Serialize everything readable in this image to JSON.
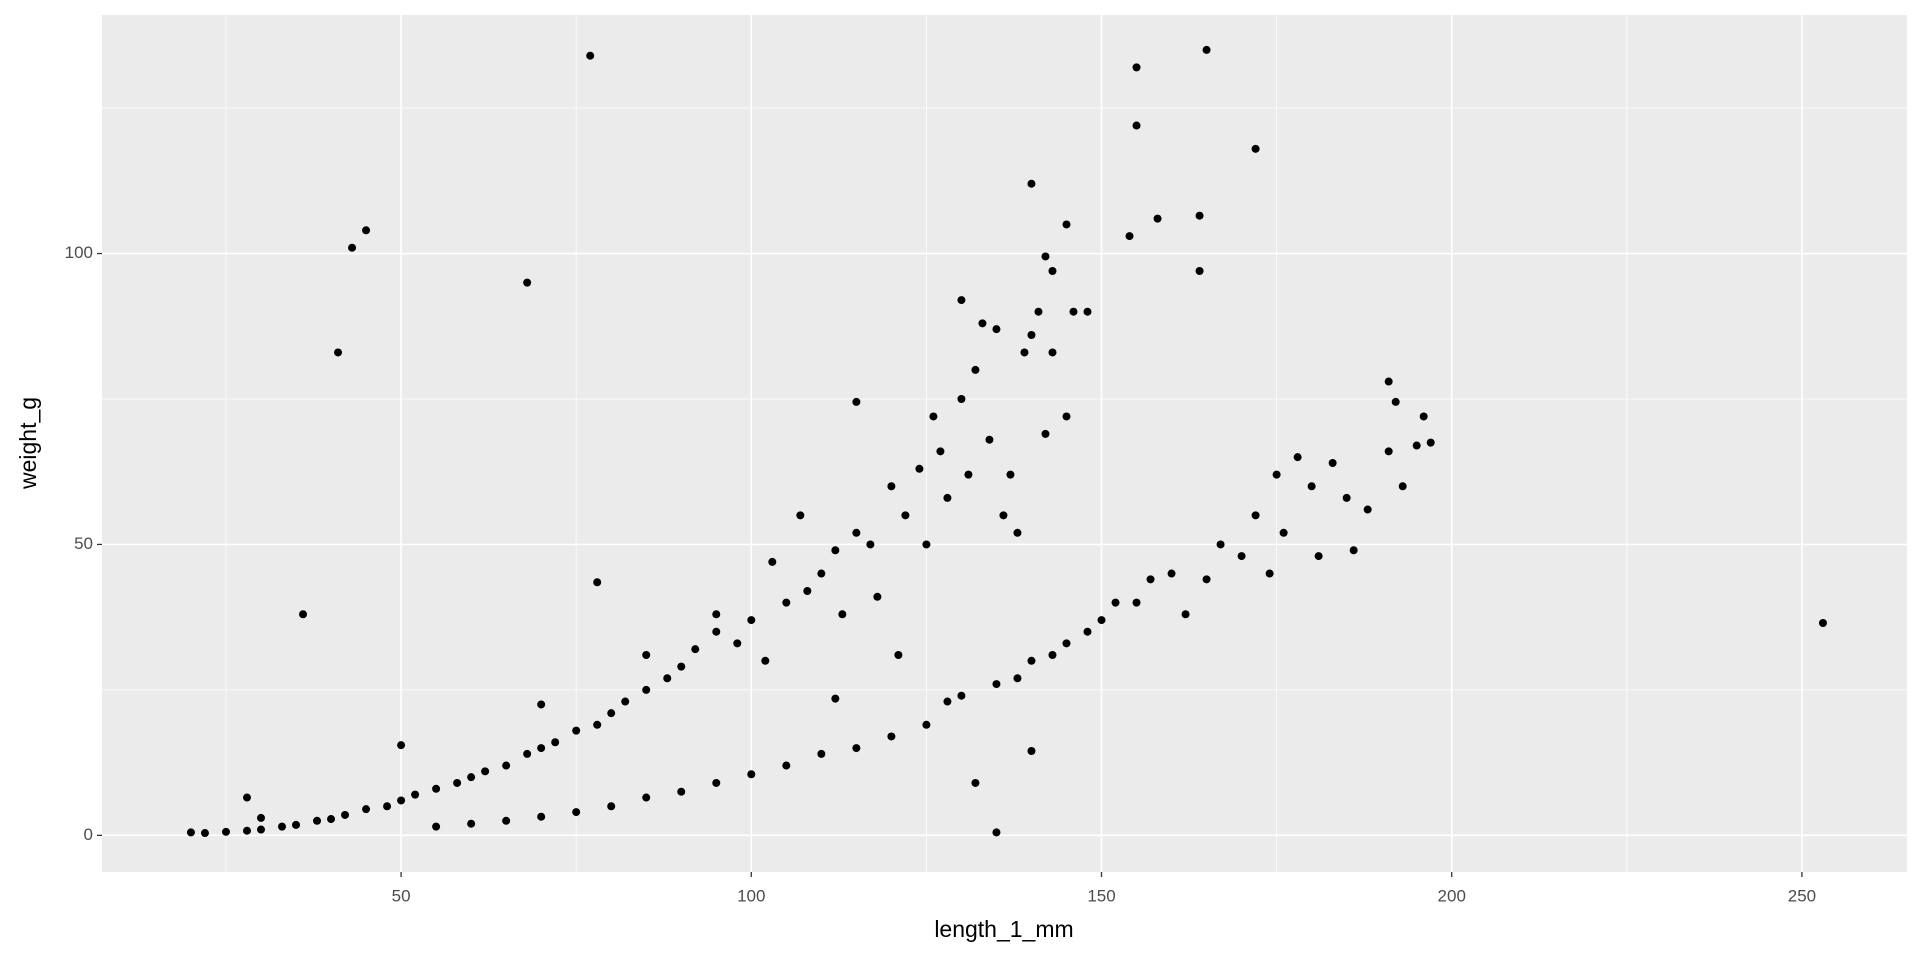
{
  "chart_data": {
    "type": "scatter",
    "x_label": "length_1_mm",
    "y_label": "weight_g",
    "color": "#000000",
    "background": "#ebebeb",
    "grid": true,
    "xlim": [
      7.3,
      265
    ],
    "ylim": [
      -6.3,
      141
    ],
    "xticks": [
      50,
      100,
      150,
      200,
      250
    ],
    "yticks": [
      0,
      50,
      100
    ],
    "xminor": [
      25,
      75,
      125,
      175,
      225
    ],
    "yminor": [
      25,
      75,
      125
    ],
    "x": [
      20,
      22,
      25,
      28,
      30,
      33,
      35,
      38,
      40,
      28,
      30,
      42,
      45,
      48,
      50,
      50,
      52,
      55,
      58,
      60,
      62,
      65,
      68,
      70,
      70,
      72,
      75,
      78,
      80,
      82,
      85,
      85,
      88,
      90,
      92,
      95,
      95,
      98,
      100,
      102,
      103,
      105,
      107,
      108,
      110,
      112,
      113,
      115,
      117,
      118,
      120,
      121,
      122,
      124,
      125,
      126,
      127,
      128,
      130,
      130,
      131,
      132,
      133,
      134,
      135,
      136,
      137,
      138,
      139,
      140,
      141,
      142,
      143,
      145,
      146,
      148,
      55,
      60,
      65,
      70,
      75,
      80,
      85,
      90,
      95,
      100,
      105,
      110,
      112,
      115,
      120,
      125,
      128,
      130,
      132,
      135,
      138,
      140,
      140,
      143,
      145,
      148,
      150,
      152,
      155,
      157,
      160,
      162,
      165,
      167,
      170,
      172,
      174,
      175,
      176,
      178,
      180,
      181,
      183,
      185,
      186,
      188,
      191,
      193,
      195,
      196,
      197,
      77,
      165,
      155,
      155,
      172,
      140,
      45,
      43,
      68,
      41,
      36,
      78,
      253,
      135,
      158,
      164,
      164,
      154,
      145,
      143,
      142,
      115,
      191,
      192
    ],
    "y": [
      0.5,
      0.4,
      0.6,
      0.8,
      1,
      1.5,
      1.8,
      2.5,
      2.8,
      6.5,
      3,
      3.5,
      4.5,
      5,
      6,
      15.5,
      7,
      8,
      9,
      10,
      11,
      12,
      14,
      15,
      22.5,
      16,
      18,
      19,
      21,
      23,
      25,
      31,
      27,
      29,
      32,
      35,
      38,
      33,
      37,
      30,
      47,
      40,
      55,
      42,
      45,
      49,
      38,
      52,
      50,
      41,
      60,
      31,
      55,
      63,
      50,
      72,
      66,
      58,
      75,
      92,
      62,
      80,
      88,
      68,
      87,
      55,
      62,
      52,
      83,
      86,
      90,
      69,
      83,
      72,
      90,
      90,
      1.5,
      2,
      2.5,
      3.2,
      4,
      5,
      6.5,
      7.5,
      9,
      10.5,
      12,
      14,
      23.5,
      15,
      17,
      19,
      23,
      24,
      9,
      26,
      27,
      30,
      14.5,
      31,
      33,
      35,
      37,
      40,
      40,
      44,
      45,
      38,
      44,
      50,
      48,
      55,
      45,
      62,
      52,
      65,
      60,
      48,
      64,
      58,
      49,
      56,
      66,
      60,
      67,
      72,
      67.5,
      134,
      135,
      132,
      122,
      118,
      112,
      104,
      101,
      95,
      83,
      38,
      43.5,
      36.5,
      0.5,
      106,
      106.5,
      97,
      103,
      105,
      97,
      99.5,
      74.5,
      78,
      74.5
    ]
  }
}
